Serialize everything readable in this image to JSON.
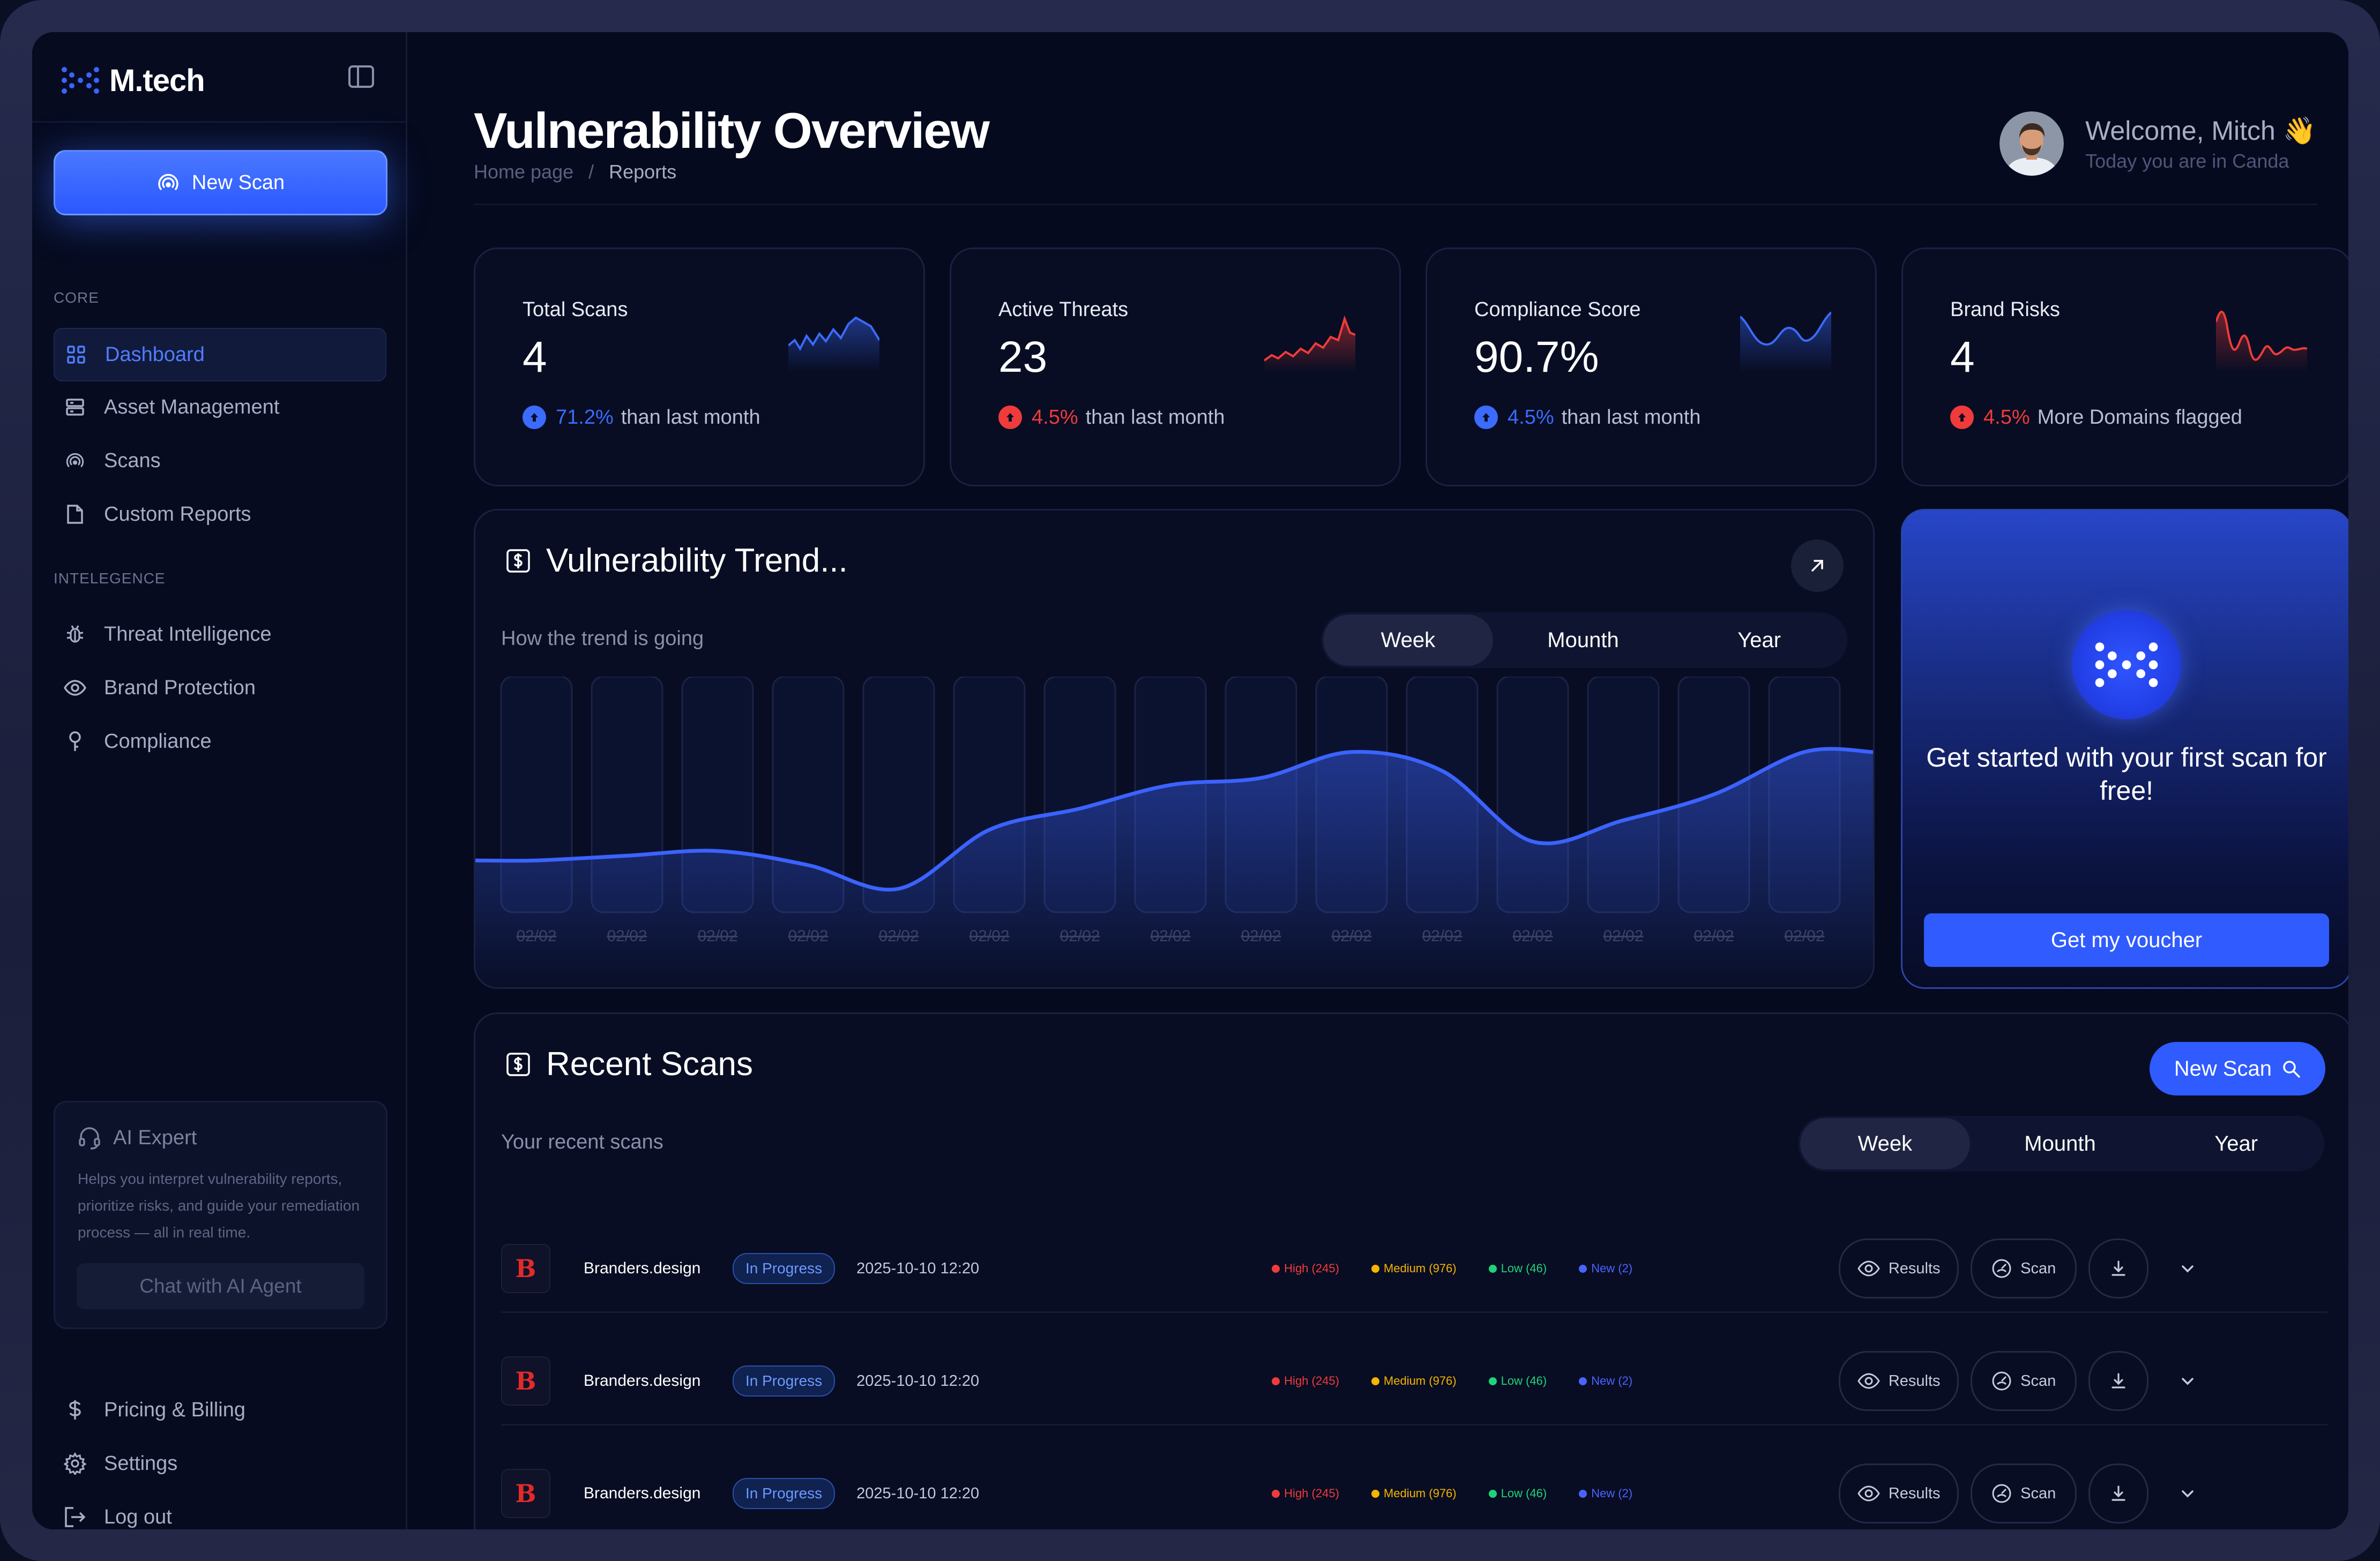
{
  "app": {
    "name": "M.tech"
  },
  "sidebar": {
    "new_scan": "New Scan",
    "sections": {
      "core": "CORE",
      "intelligence": "INTELEGENCE"
    },
    "core_items": [
      {
        "label": "Dashboard",
        "icon": "grid-icon",
        "active": true
      },
      {
        "label": "Asset Management",
        "icon": "server-icon"
      },
      {
        "label": "Scans",
        "icon": "radar-icon"
      },
      {
        "label": "Custom Reports",
        "icon": "file-icon"
      }
    ],
    "intel_items": [
      {
        "label": "Threat Intelligence",
        "icon": "bug-icon"
      },
      {
        "label": "Brand Protection",
        "icon": "eye-icon"
      },
      {
        "label": "Compliance",
        "icon": "pin-icon"
      }
    ],
    "ai_card": {
      "title": "AI Expert",
      "description": "Helps you interpret vulnerability reports, prioritize risks, and guide your remediation process — all in real time.",
      "button": "Chat with AI Agent"
    },
    "bottom_items": [
      {
        "label": "Pricing & Billing",
        "icon": "dollar-icon"
      },
      {
        "label": "Settings",
        "icon": "gear-icon"
      },
      {
        "label": "Log out",
        "icon": "logout-icon"
      }
    ]
  },
  "header": {
    "title": "Vulnerability Overview",
    "breadcrumb": [
      "Home page",
      "Reports"
    ],
    "separator": "/",
    "welcome": "Welcome, Mitch 👋",
    "location": "Today you are in Canda"
  },
  "stats": [
    {
      "title": "Total Scans",
      "value": "4",
      "pct": "71.2%",
      "suffix": "than last month",
      "trend": "up",
      "color": "#3b6bff"
    },
    {
      "title": "Active Threats",
      "value": "23",
      "pct": "4.5%",
      "suffix": "than last month",
      "trend": "up",
      "color": "#ef3b3b"
    },
    {
      "title": "Compliance Score",
      "value": "90.7%",
      "pct": "4.5%",
      "suffix": "than last month",
      "trend": "up",
      "color": "#3b6bff"
    },
    {
      "title": "Brand Risks",
      "value": "4",
      "pct": "4.5%",
      "suffix": "More Domains flagged",
      "trend": "up",
      "color": "#ef3b3b"
    }
  ],
  "trend": {
    "title": "Vulnerability Trend...",
    "subtitle": "How the trend is going",
    "periods": [
      "Week",
      "Mounth",
      "Year"
    ],
    "selected_period": "Week"
  },
  "chart_data": {
    "type": "area",
    "title": "Vulnerability Trend...",
    "x": [
      "02/02",
      "02/02",
      "02/02",
      "02/02",
      "02/02",
      "02/02",
      "02/02",
      "02/02",
      "02/02",
      "02/02",
      "02/02",
      "02/02",
      "02/02",
      "02/02",
      "02/02"
    ],
    "values": [
      22,
      24,
      26,
      20,
      10,
      35,
      44,
      54,
      57,
      68,
      60,
      30,
      39,
      50,
      68
    ],
    "ylim": [
      0,
      100
    ],
    "grid": false,
    "color": "#3b63ff"
  },
  "promo": {
    "text": "Get started with your first scan for free!",
    "button": "Get my voucher"
  },
  "recent": {
    "title": "Recent Scans",
    "subtitle": "Your recent scans",
    "new_scan": "New Scan",
    "periods": [
      "Week",
      "Mounth",
      "Year"
    ],
    "selected_period": "Week",
    "rows": [
      {
        "logo": "B",
        "domain": "Branders.design",
        "status": "In Progress",
        "timestamp": "2025-10-10 12:20",
        "high": "High (245)",
        "medium": "Medium (976)",
        "low": "Low (46)",
        "new": "New (2)",
        "results": "Results",
        "scan": "Scan"
      },
      {
        "logo": "B",
        "domain": "Branders.design",
        "status": "In Progress",
        "timestamp": "2025-10-10 12:20",
        "high": "High (245)",
        "medium": "Medium (976)",
        "low": "Low (46)",
        "new": "New (2)",
        "results": "Results",
        "scan": "Scan"
      },
      {
        "logo": "B",
        "domain": "Branders.design",
        "status": "In Progress",
        "timestamp": "2025-10-10 12:20",
        "high": "High (245)",
        "medium": "Medium (976)",
        "low": "Low (46)",
        "new": "New (2)",
        "results": "Results",
        "scan": "Scan"
      }
    ]
  },
  "colors": {
    "accent": "#2f5bff",
    "high": "#ef3b3b",
    "medium": "#f5b400",
    "low": "#1fd37a",
    "new": "#4a63ff"
  }
}
